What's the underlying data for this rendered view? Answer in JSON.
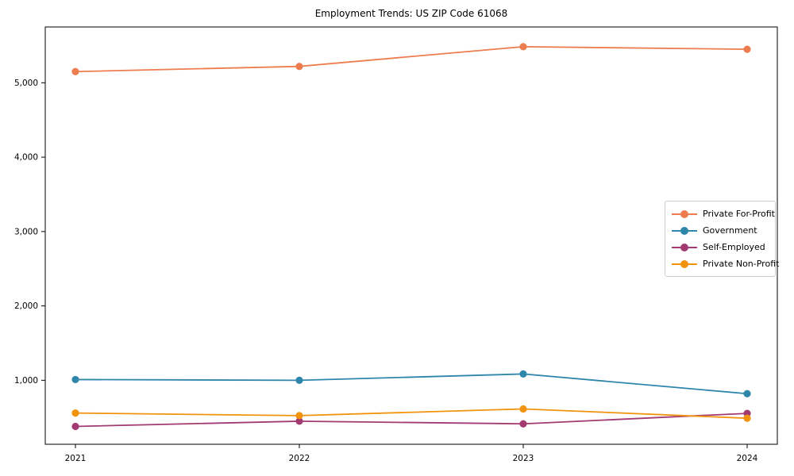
{
  "title": "Employment Trends: US ZIP Code 61068",
  "chart_data": {
    "type": "line",
    "title": "Employment Trends: US ZIP Code 61068",
    "x": [
      2021,
      2022,
      2023,
      2024
    ],
    "x_tick_labels": [
      "2021",
      "2022",
      "2023",
      "2024"
    ],
    "series": [
      {
        "name": "Private For-Profit",
        "color": "#ED7D4E",
        "values": [
          5150,
          5220,
          5485,
          5450
        ]
      },
      {
        "name": "Government",
        "color": "#2E86AB",
        "values": [
          1010,
          1000,
          1085,
          820
        ]
      },
      {
        "name": "Self-Employed",
        "color": "#A23B72",
        "values": [
          380,
          450,
          415,
          555
        ]
      },
      {
        "name": "Private Non-Profit",
        "color": "#F1930D",
        "values": [
          560,
          525,
          615,
          490
        ]
      }
    ],
    "yticks": [
      1000,
      2000,
      3000,
      4000,
      5000
    ],
    "ytick_labels": [
      "1,000",
      "2,000",
      "3,000",
      "4,000",
      "5,000"
    ],
    "ylim": [
      140,
      5750
    ],
    "grid": false,
    "legend_position": "right-middle",
    "marker": "circle",
    "frame_color": "#000000"
  }
}
